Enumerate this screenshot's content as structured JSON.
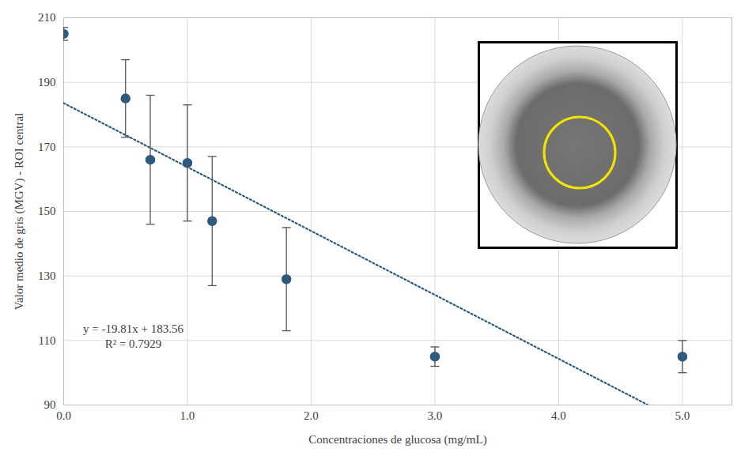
{
  "chart_data": {
    "type": "scatter",
    "x_label": "Concentraciones de glucosa (mg/mL)",
    "y_label": "Valor medio de gris (MGV) - ROI central",
    "x": [
      0,
      0.5,
      0.7,
      1,
      1.2,
      1.8,
      3,
      5
    ],
    "values": [
      205,
      185,
      166,
      165,
      147,
      129,
      105,
      105
    ],
    "errors": [
      2,
      12,
      20,
      18,
      20,
      16,
      3,
      5
    ],
    "color": "#2e5a7d",
    "marker": "circle",
    "xlim": [
      0,
      5.4
    ],
    "ylim": [
      90,
      210
    ],
    "xticks": [
      0,
      1,
      2,
      3,
      4,
      5
    ],
    "yticks": [
      90,
      110,
      130,
      150,
      170,
      190,
      210
    ],
    "grid": true,
    "trendline": {
      "slope": -19.81,
      "intercept": 183.56,
      "label": "y = -19.81x + 183.56",
      "r2_label": "R² = 0.7929",
      "line_style": "dotted",
      "color": "#2e5a7d"
    }
  }
}
